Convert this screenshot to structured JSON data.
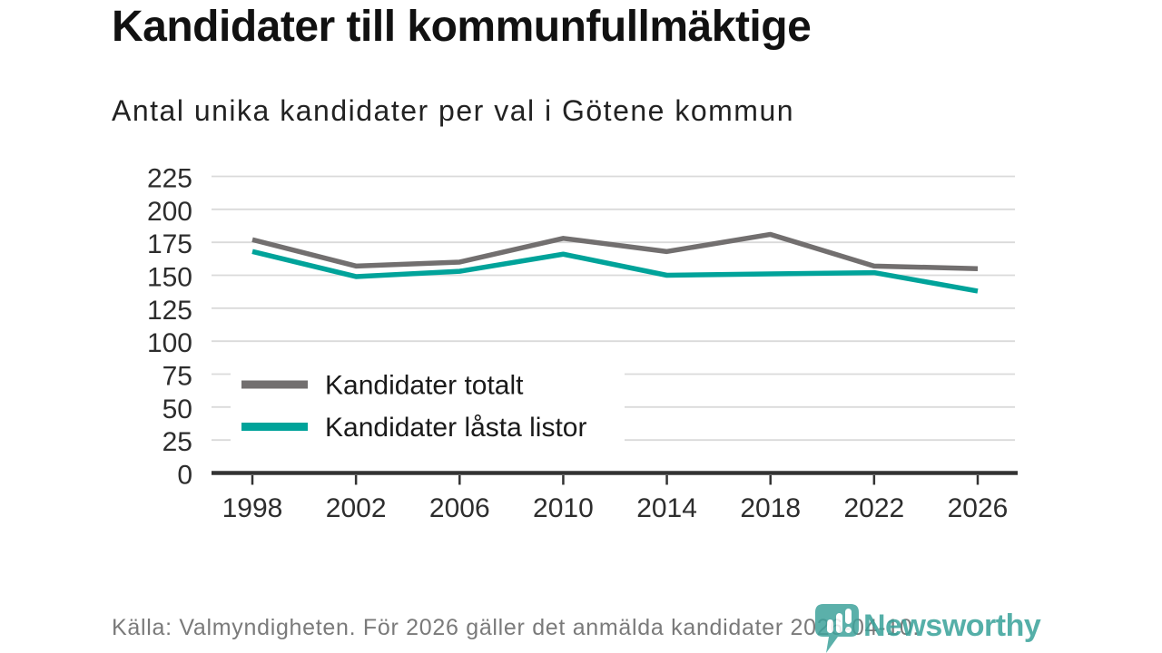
{
  "header": {
    "title": "Kandidater till kommunfullmäktige",
    "subtitle": "Antal unika kandidater per val i Götene kommun"
  },
  "footer": {
    "source_text": "Källa: Valmyndigheten. För 2026 gäller det anmälda kandidater 2026-04-10."
  },
  "brand": {
    "name": "Newsworthy",
    "icon": "newsworthy-pin-barchart-icon",
    "color": "#3fa39c"
  },
  "colors": {
    "title_text": "#111111",
    "axis_text": "#2d2d2d",
    "axis_line": "#333333",
    "gridline": "#dadada",
    "footer_text": "#7a7a7a",
    "legend_text": "#1a1a1a",
    "series_total": "#726f6f",
    "series_locked": "#00a39a"
  },
  "chart_data": {
    "type": "line",
    "title": "Kandidater till kommunfullmäktige",
    "subtitle": "Antal unika kandidater per val i Götene kommun",
    "x": [
      1998,
      2002,
      2006,
      2010,
      2014,
      2018,
      2022,
      2026
    ],
    "series": [
      {
        "name": "Kandidater totalt",
        "color": "#726f6f",
        "values": [
          177,
          157,
          160,
          178,
          168,
          181,
          157,
          155
        ]
      },
      {
        "name": "Kandidater låsta listor",
        "color": "#00a39a",
        "values": [
          168,
          149,
          153,
          166,
          150,
          151,
          152,
          138
        ]
      }
    ],
    "ylim": [
      0,
      225
    ],
    "ytick_step": 25,
    "xlabel": "",
    "ylabel": "",
    "grid": "horizontal",
    "legend_position": "inside-bottom-left"
  }
}
